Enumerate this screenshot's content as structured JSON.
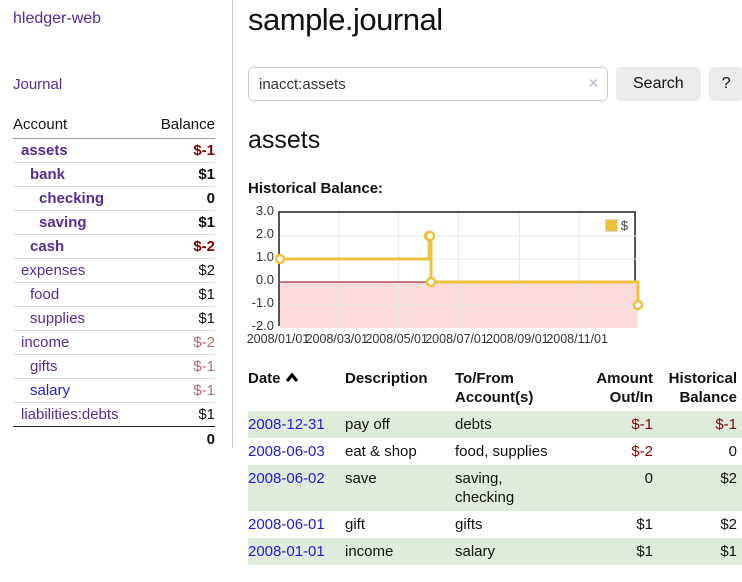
{
  "colors": {
    "purple": "#572c94",
    "blue": "#1c1cd6",
    "negative_red": "#8b0000",
    "soft_red": "#b36b6b",
    "row_stripe_green": "#e0ecdb",
    "chart_line_yellow": "#edc240",
    "chart_negative_pink": "#fbdbdb",
    "chart_zero_line": "#8b0000",
    "button_gray": "#ececec"
  },
  "sidebar": {
    "brand": "hledger-web",
    "journal_label": "Journal",
    "accounts_header": {
      "account": "Account",
      "balance": "Balance"
    },
    "accounts": [
      {
        "name": "assets",
        "depth": 0,
        "bold": true,
        "balance": "$-1"
      },
      {
        "name": "bank",
        "depth": 1,
        "bold": true,
        "balance": "$1"
      },
      {
        "name": "checking",
        "depth": 2,
        "bold": true,
        "balance": "0"
      },
      {
        "name": "saving",
        "depth": 2,
        "bold": true,
        "balance": "$1"
      },
      {
        "name": "cash",
        "depth": 1,
        "bold": true,
        "balance": "$-2"
      },
      {
        "name": "expenses",
        "depth": 0,
        "bold": false,
        "balance": "$2"
      },
      {
        "name": "food",
        "depth": 1,
        "bold": false,
        "balance": "$1"
      },
      {
        "name": "supplies",
        "depth": 1,
        "bold": false,
        "balance": "$1"
      },
      {
        "name": "income",
        "depth": 0,
        "bold": false,
        "balance": "$-2"
      },
      {
        "name": "gifts",
        "depth": 1,
        "bold": false,
        "balance": "$-1"
      },
      {
        "name": "salary",
        "depth": 1,
        "bold": false,
        "balance": "$-1",
        "blue": true
      },
      {
        "name": "liabilities:debts",
        "depth": 0,
        "bold": false,
        "balance": "$1"
      }
    ],
    "total": "0"
  },
  "header": {
    "title": "sample.journal",
    "search": {
      "value": "inacct:assets",
      "clear_icon": "×",
      "button": "Search",
      "help_button": "?"
    }
  },
  "main": {
    "account_title": "assets",
    "chart_label": "Historical Balance:"
  },
  "register": {
    "columns": {
      "date": "Date",
      "description": "Description",
      "accounts": "To/From Account(s)",
      "amount": "Amount Out/In",
      "balance": "Historical Balance"
    },
    "sort_indicator": "caret-up",
    "rows": [
      {
        "date": "2008-12-31",
        "description": "pay off",
        "accounts": "debts",
        "amount": "$-1",
        "balance": "$-1"
      },
      {
        "date": "2008-06-03",
        "description": "eat & shop",
        "accounts": "food, supplies",
        "amount": "$-2",
        "balance": "0"
      },
      {
        "date": "2008-06-02",
        "description": "save",
        "accounts": "saving, checking",
        "amount": "0",
        "balance": "$2"
      },
      {
        "date": "2008-06-01",
        "description": "gift",
        "accounts": "gifts",
        "amount": "$1",
        "balance": "$2"
      },
      {
        "date": "2008-01-01",
        "description": "income",
        "accounts": "salary",
        "amount": "$1",
        "balance": "$1"
      }
    ]
  },
  "chart_data": {
    "type": "line",
    "title": "Historical Balance:",
    "step": true,
    "series": [
      {
        "name": "$",
        "points": [
          [
            "2008-01-01",
            1
          ],
          [
            "2008-06-01",
            2
          ],
          [
            "2008-06-02",
            2
          ],
          [
            "2008-06-03",
            0
          ],
          [
            "2008-12-31",
            -1
          ]
        ]
      }
    ],
    "xrange": [
      "2008-01-01",
      "2008-12-31"
    ],
    "ylim": [
      -2,
      3
    ],
    "yticks": [
      3.0,
      2.0,
      1.0,
      0.0,
      -1.0,
      -2.0
    ],
    "xticks": [
      "2008/01/01",
      "2008/03/01",
      "2008/05/01",
      "2008/07/01",
      "2008/09/01",
      "2008/11/01"
    ],
    "legend_position": "top-right",
    "grid": true,
    "negative_region_shaded": true,
    "zero_line_color": "#8b0000"
  }
}
